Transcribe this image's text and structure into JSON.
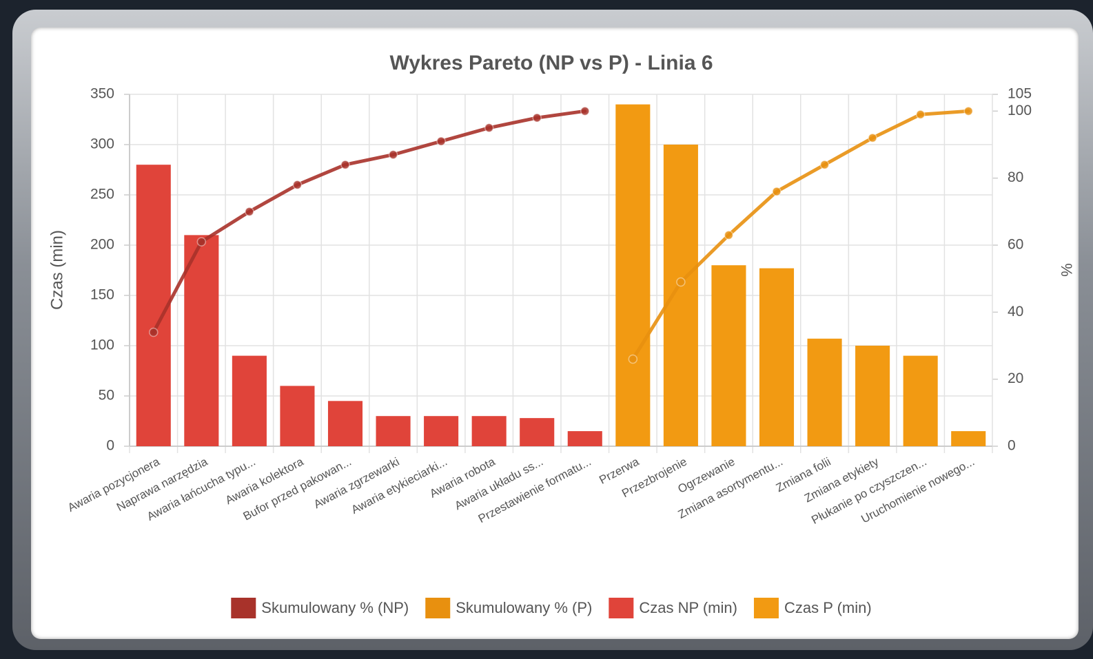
{
  "chart_data": {
    "type": "pareto",
    "title": "Wykres Pareto (NP vs P) - Linia 6",
    "y_label": "Czas (min)",
    "y2_label": "%",
    "categories": [
      "Awaria pozycjonera",
      "Naprawa narzędzia",
      "Awaria łańcucha typu...",
      "Awaria kolektora",
      "Bufor przed pakowan...",
      "Awaria zgrzewarki",
      "Awaria etykieciarki...",
      "Awaria robota",
      "Awaria układu ss...",
      "Przestawienie formatu...",
      "Przerwa",
      "Przezbrojenie",
      "Ogrzewanie",
      "Zmiana asortymentu...",
      "Zmiana folii",
      "Zmiana etykiety",
      "Płukanie po czyszczen...",
      "Uruchomienie nowego..."
    ],
    "series": [
      {
        "name": "Skumulowany % (NP)",
        "kind": "line",
        "axis": "y2",
        "color": "#a8322a",
        "values": [
          34,
          61,
          70,
          78,
          84,
          87,
          91,
          95,
          98,
          100,
          null,
          null,
          null,
          null,
          null,
          null,
          null,
          null
        ]
      },
      {
        "name": "Skumulowany % (P)",
        "kind": "line",
        "axis": "y2",
        "color": "#e8900f",
        "values": [
          null,
          null,
          null,
          null,
          null,
          null,
          null,
          null,
          null,
          null,
          26,
          49,
          63,
          76,
          84,
          92,
          99,
          100
        ]
      },
      {
        "name": "Czas NP (min)",
        "kind": "bar",
        "color": "#e0443a",
        "values": [
          280,
          210,
          90,
          60,
          45,
          30,
          30,
          30,
          28,
          15,
          null,
          null,
          null,
          null,
          null,
          null,
          null,
          null
        ]
      },
      {
        "name": "Czas P (min)",
        "kind": "bar",
        "color": "#f29a12",
        "values": [
          null,
          null,
          null,
          null,
          null,
          null,
          null,
          null,
          null,
          null,
          340,
          300,
          180,
          177,
          107,
          100,
          90,
          15
        ]
      }
    ],
    "ylim": [
      0,
      350
    ],
    "yticks": [
      0,
      50,
      100,
      150,
      200,
      250,
      300,
      350
    ],
    "y2lim": [
      0,
      105
    ],
    "y2ticks": [
      0,
      20,
      40,
      60,
      80,
      100,
      105
    ],
    "grid": true,
    "legend": "bottom"
  }
}
